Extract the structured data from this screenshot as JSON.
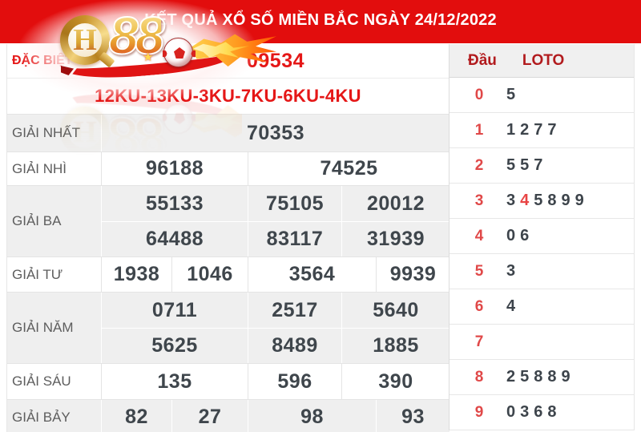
{
  "colors": {
    "banner_red": "#e20d0d",
    "accent_red": "#e51717",
    "dark_red": "#b21b1e",
    "number_dark": "#3f464c",
    "row_gray": "#efefef",
    "loto_head_red": "#e04848"
  },
  "header": {
    "title": "KẾT QUẢ XỔ SỐ MIỀN BẮC NGÀY 24/12/2022"
  },
  "logo": {
    "brand": "QH88",
    "ring_letter": "H",
    "number": "88",
    "star": "★"
  },
  "results": {
    "special": {
      "label": "ĐẶC BIỆT",
      "value": "09534"
    },
    "ku_line": "12KU-13KU-3KU-7KU-6KU-4KU",
    "first": {
      "label": "GIẢI NHẤT",
      "value": "70353"
    },
    "second": {
      "label": "GIẢI NHÌ",
      "values": [
        "96188",
        "74525"
      ]
    },
    "third": {
      "label": "GIẢI BA",
      "row1": [
        "55133",
        "75105",
        "20012"
      ],
      "row2": [
        "64488",
        "83117",
        "31939"
      ]
    },
    "fourth": {
      "label": "GIẢI TƯ",
      "values": [
        "1938",
        "1046",
        "3564",
        "9939"
      ]
    },
    "fifth": {
      "label": "GIẢI NĂM",
      "row1": [
        "0711",
        "2517",
        "5640"
      ],
      "row2": [
        "5625",
        "8489",
        "1885"
      ]
    },
    "sixth": {
      "label": "GIẢI SÁU",
      "values": [
        "135",
        "596",
        "390"
      ]
    },
    "seventh": {
      "label": "GIẢI BẢY",
      "values": [
        "82",
        "27",
        "98",
        "93"
      ]
    }
  },
  "loto": {
    "header": {
      "col1": "Đầu",
      "col2": "LOTO"
    },
    "rows": [
      {
        "head": "0",
        "value": "5",
        "red_positions": []
      },
      {
        "head": "1",
        "value": "1277",
        "red_positions": []
      },
      {
        "head": "2",
        "value": "557",
        "red_positions": []
      },
      {
        "head": "3",
        "value": "345899",
        "red_positions": [
          1
        ]
      },
      {
        "head": "4",
        "value": "06",
        "red_positions": []
      },
      {
        "head": "5",
        "value": "3",
        "red_positions": []
      },
      {
        "head": "6",
        "value": "4",
        "red_positions": []
      },
      {
        "head": "7",
        "value": "",
        "red_positions": []
      },
      {
        "head": "8",
        "value": "25889",
        "red_positions": []
      },
      {
        "head": "9",
        "value": "0368",
        "red_positions": []
      }
    ]
  }
}
